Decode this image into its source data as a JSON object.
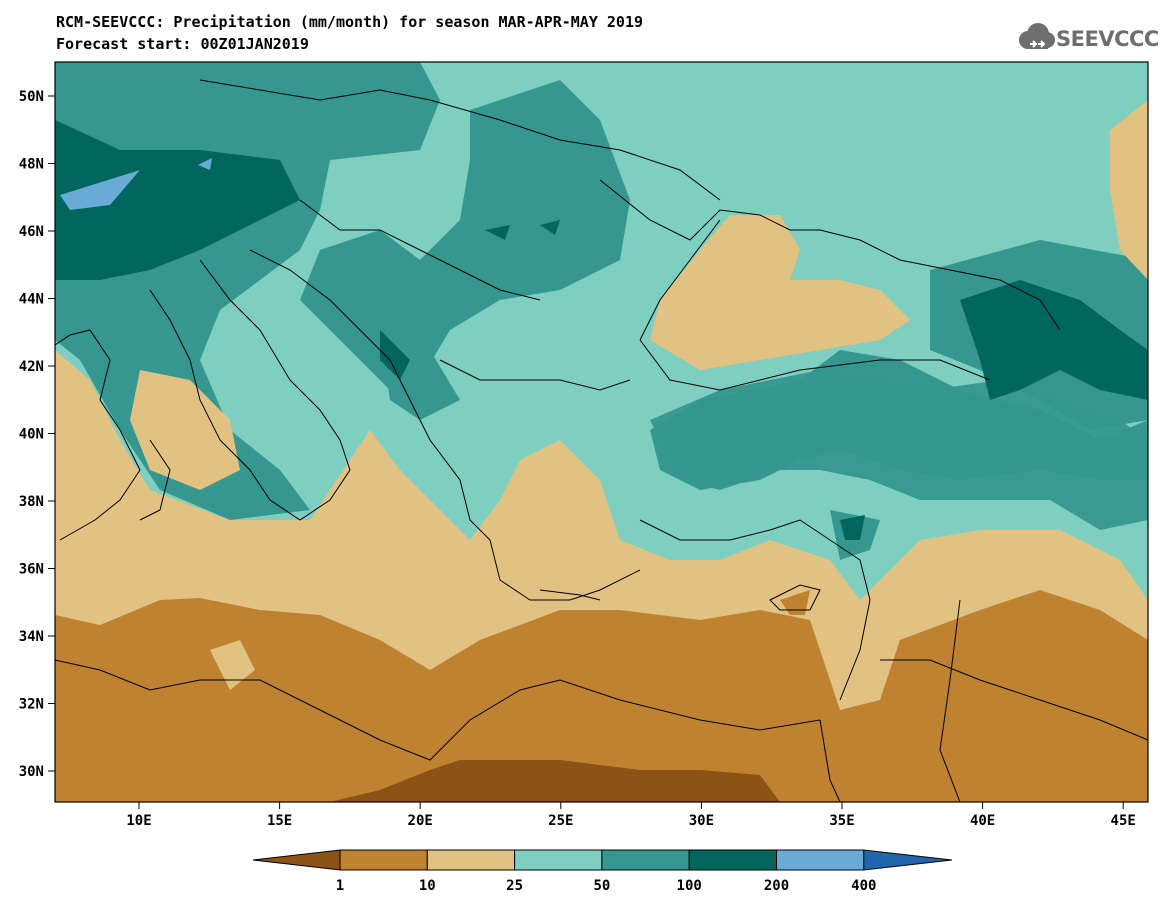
{
  "title_line1": "RCM-SEEVCCC: Precipitation (mm/month) for season MAR-APR-MAY 2019",
  "title_line2": "Forecast start: 00Z01JAN2019",
  "logo_text": "SEEVCCC",
  "logo_icon": "cloud-icon",
  "lat_labels": [
    "50N",
    "48N",
    "46N",
    "44N",
    "42N",
    "40N",
    "38N",
    "36N",
    "34N",
    "32N",
    "30N"
  ],
  "lon_labels": [
    "10E",
    "15E",
    "20E",
    "25E",
    "30E",
    "35E",
    "40E",
    "45E"
  ],
  "legend": {
    "ticks": [
      "1",
      "10",
      "25",
      "50",
      "100",
      "200",
      "400"
    ],
    "colors": [
      "#8c5216",
      "#be8230",
      "#e2c282",
      "#7fcfc0",
      "#35978f",
      "#01665e",
      "#6aaad6",
      "#2166ac"
    ]
  }
}
